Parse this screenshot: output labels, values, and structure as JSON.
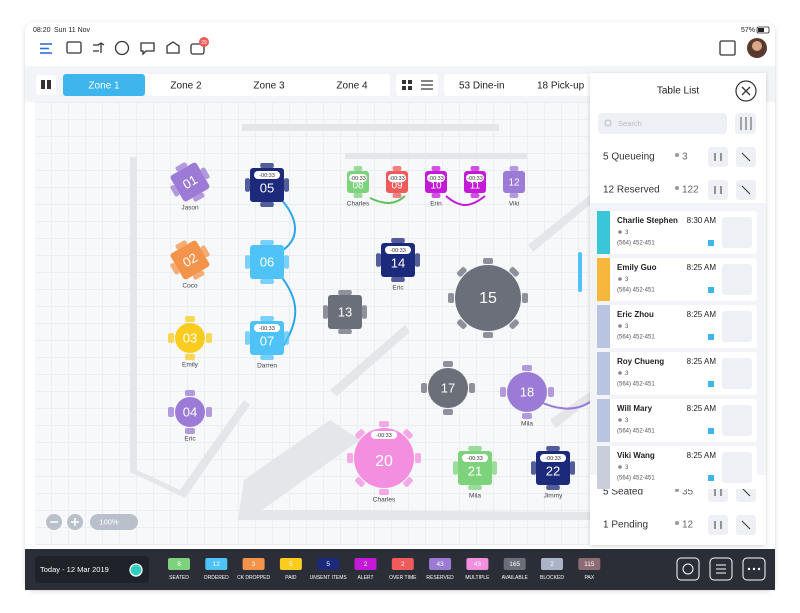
{
  "status_bar": {
    "time": "08:20",
    "date": "Sun 11 Nov",
    "battery": "57%"
  },
  "toolbar": {
    "badge": "29"
  },
  "tabs": [
    "Zone 1",
    "Zone 2",
    "Zone 3",
    "Zone 4"
  ],
  "counts": [
    "53 Dine-in",
    "18 Pick-up"
  ],
  "zoom": "100%",
  "tables": [
    {
      "number": "01",
      "color": "#9c7bd6",
      "shape": "square",
      "name": "Jason"
    },
    {
      "number": "02",
      "color": "#f4934a",
      "shape": "square",
      "name": "Coco"
    },
    {
      "number": "03",
      "color": "#f9cc1e",
      "shape": "round",
      "name": "Emily"
    },
    {
      "number": "04",
      "color": "#9c7bd6",
      "shape": "round",
      "name": "Eric"
    },
    {
      "number": "05",
      "color": "#1b2a7a",
      "shape": "square",
      "timer": "-00:33"
    },
    {
      "number": "06",
      "color": "#4fc3f7",
      "shape": "square"
    },
    {
      "number": "07",
      "color": "#4fc3f7",
      "shape": "square",
      "name": "Darren",
      "timer": "-00:33"
    },
    {
      "number": "08",
      "color": "#7dd37b",
      "shape": "square",
      "name": "Charles",
      "timer": "-00:33"
    },
    {
      "number": "09",
      "color": "#ef5a5a",
      "shape": "square",
      "timer": "-00:33"
    },
    {
      "number": "10",
      "color": "#c41ad8",
      "shape": "square",
      "name": "Erin",
      "timer": "-00:33"
    },
    {
      "number": "11",
      "color": "#c41ad8",
      "shape": "square",
      "timer": "-00:33"
    },
    {
      "number": "12",
      "color": "#9c7bd6",
      "shape": "square",
      "name": "Viki"
    },
    {
      "number": "13",
      "color": "#6b6f7a",
      "shape": "square"
    },
    {
      "number": "14",
      "color": "#1b2a7a",
      "shape": "square",
      "name": "Eric",
      "timer": "-00:33"
    },
    {
      "number": "15",
      "color": "#6b6f7a",
      "shape": "round"
    },
    {
      "number": "17",
      "color": "#6b6f7a",
      "shape": "round"
    },
    {
      "number": "18",
      "color": "#9c7bd6",
      "shape": "round",
      "name": "Mila"
    },
    {
      "number": "20",
      "color": "#f48fe0",
      "shape": "round",
      "name": "Charles",
      "timer": "-00:33"
    },
    {
      "number": "21",
      "color": "#7dd37b",
      "shape": "square",
      "name": "Mila",
      "timer": "-00:33"
    },
    {
      "number": "22",
      "color": "#1b2a7a",
      "shape": "square",
      "name": "Jimmy",
      "timer": "-00:33"
    }
  ],
  "table_list": {
    "title": "Table List",
    "search_placeholder": "Search",
    "groups": [
      {
        "label": "5 Queueing",
        "count": 3
      },
      {
        "label": "12 Reserved",
        "count": 122
      },
      {
        "label": "5 Seated",
        "count": 35
      },
      {
        "label": "1 Pending",
        "count": 12
      }
    ],
    "reservations": [
      {
        "name": "Charlie Stephen",
        "time": "8:30 AM",
        "guests": 3,
        "phone": "(564) 452-451",
        "color": "#39c6d8"
      },
      {
        "name": "Emily Guo",
        "time": "8:25 AM",
        "guests": 3,
        "phone": "(564) 452-451",
        "color": "#f6b73c"
      },
      {
        "name": "Eric Zhou",
        "time": "8:25 AM",
        "guests": 3,
        "phone": "(564) 452-451",
        "color": "#b8c4e0"
      },
      {
        "name": "Roy Chueng",
        "time": "8:25 AM",
        "guests": 3,
        "phone": "(564) 452-451",
        "color": "#b8c4e0"
      },
      {
        "name": "Will Mary",
        "time": "8:25 AM",
        "guests": 3,
        "phone": "(564) 452-451",
        "color": "#b8c4e0"
      },
      {
        "name": "Viki Wang",
        "time": "8:25 AM",
        "guests": 3,
        "phone": "(564) 452-451",
        "color": "#c9ceda"
      }
    ]
  },
  "footer": {
    "date": "Today - 12 Mar 2019",
    "statuses": [
      {
        "count": 8,
        "label": "SEATED",
        "color": "#7dd37b"
      },
      {
        "count": 12,
        "label": "ORDERED",
        "color": "#4fc3f7"
      },
      {
        "count": 3,
        "label": "CK DROPPED",
        "color": "#f4934a"
      },
      {
        "count": 5,
        "label": "PAID",
        "color": "#f9cc1e"
      },
      {
        "count": 5,
        "label": "UNSENT ITEMS",
        "color": "#1b2a7a"
      },
      {
        "count": 2,
        "label": "ALERT",
        "color": "#c41ad8"
      },
      {
        "count": 2,
        "label": "OVER TIME",
        "color": "#ef5a5a"
      },
      {
        "count": 43,
        "label": "RESERVED",
        "color": "#9c7bd6"
      },
      {
        "count": 43,
        "label": "MULTIPLE",
        "color": "#f48fe0"
      },
      {
        "count": 165,
        "label": "AVAILABLE",
        "color": "#6b6f7a"
      },
      {
        "count": 2,
        "label": "BLOCKED",
        "color": "#aab3c8"
      },
      {
        "count": 115,
        "label": "PAX",
        "color": "#8e6b75"
      }
    ]
  }
}
